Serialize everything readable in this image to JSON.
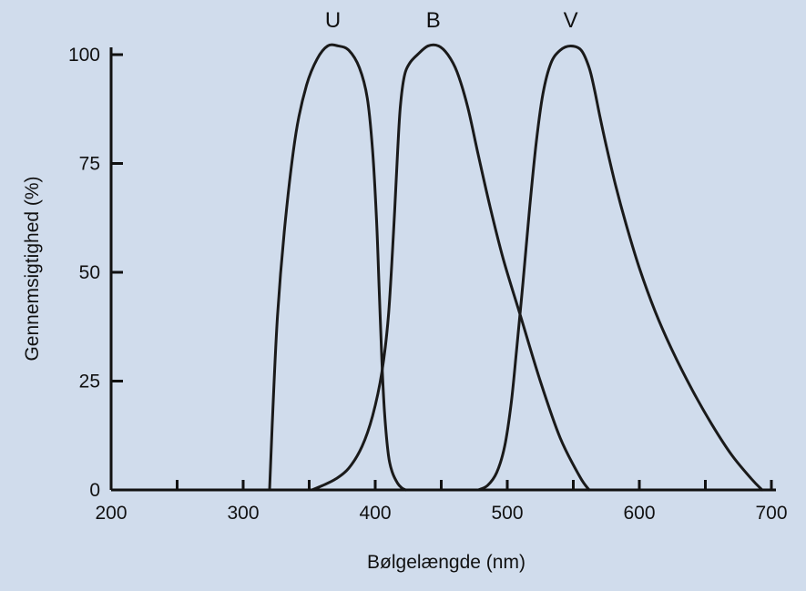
{
  "chart_data": {
    "type": "line",
    "title": "",
    "xlabel": "Bølgelængde (nm)",
    "ylabel": "Gennemsigtighed (%)",
    "xlim": [
      200,
      700
    ],
    "ylim": [
      0,
      100
    ],
    "x_ticks": [
      200,
      300,
      400,
      500,
      600,
      700
    ],
    "y_ticks": [
      0,
      25,
      50,
      75,
      100
    ],
    "legend": "labels-above-peaks",
    "grid": false,
    "line_color": "#1a1a1a",
    "background_color": "#d0dcec",
    "series": [
      {
        "name": "U",
        "x": [
          320,
          322,
          326,
          332,
          340,
          348,
          356,
          364,
          372,
          380,
          388,
          394,
          398,
          401,
          403,
          405,
          407,
          410,
          413,
          417,
          420,
          423
        ],
        "y": [
          0,
          15,
          40,
          62,
          82,
          93,
          99,
          102,
          102,
          101,
          97,
          90,
          78,
          62,
          46,
          30,
          18,
          8,
          4,
          1.5,
          0.5,
          0
        ]
      },
      {
        "name": "B",
        "x": [
          352,
          360,
          370,
          380,
          390,
          398,
          405,
          410,
          414,
          417,
          419,
          422,
          426,
          432,
          440,
          448,
          455,
          462,
          470,
          478,
          487,
          497,
          510,
          525,
          540,
          555,
          562
        ],
        "y": [
          0,
          1,
          2.5,
          5,
          10,
          17,
          27,
          40,
          60,
          78,
          88,
          95,
          98,
          100,
          102,
          102,
          100,
          96,
          88,
          77,
          65,
          53,
          40,
          25,
          12,
          3,
          0
        ]
      },
      {
        "name": "V",
        "x": [
          478,
          485,
          492,
          498,
          503,
          507,
          512,
          517,
          522,
          527,
          533,
          540,
          548,
          556,
          562,
          566,
          570,
          575,
          582,
          590,
          600,
          612,
          625,
          640,
          655,
          670,
          685,
          693
        ],
        "y": [
          0,
          1,
          4,
          10,
          20,
          32,
          48,
          65,
          80,
          91,
          98,
          101,
          102,
          101,
          97,
          92,
          86,
          79,
          70,
          61,
          51,
          41,
          32,
          23,
          15,
          8,
          2.5,
          0
        ]
      }
    ]
  }
}
